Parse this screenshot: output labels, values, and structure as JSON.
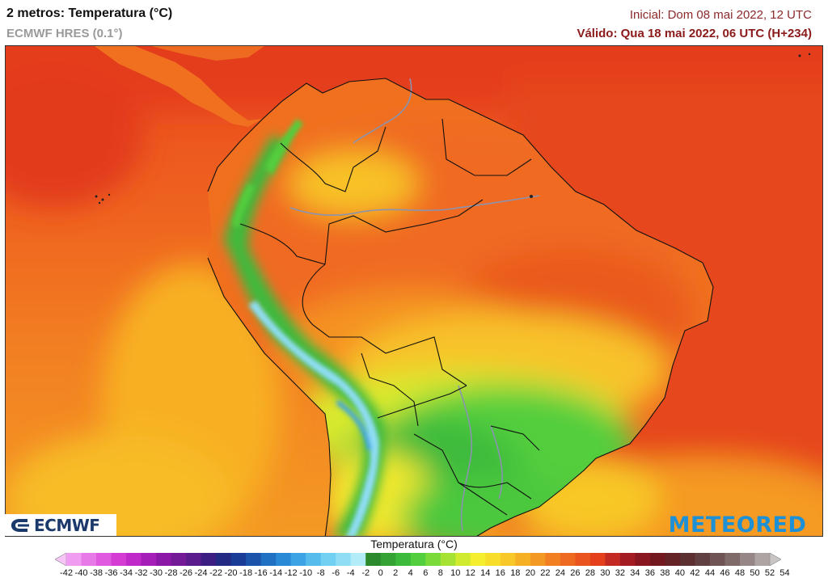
{
  "header": {
    "title": "2 metros: Temperatura (°C)",
    "model": "ECMWF HRES (0.1°)",
    "initial": "Inicial: Dom 08 mai 2022, 12 UTC",
    "valid": "Válido: Qua 18 mai 2022, 06 UTC (H+234)"
  },
  "logos": {
    "left": "ECMWF",
    "right": "METEORED"
  },
  "legend": {
    "title": "Temperatura (°C)",
    "ticks": [
      -42,
      -40,
      -38,
      -36,
      -34,
      -32,
      -30,
      -28,
      -26,
      -24,
      -22,
      -20,
      -18,
      -16,
      -14,
      -12,
      -10,
      -8,
      -6,
      -4,
      -2,
      0,
      2,
      4,
      6,
      8,
      10,
      12,
      14,
      16,
      18,
      20,
      22,
      24,
      26,
      28,
      30,
      32,
      34,
      36,
      38,
      40,
      42,
      44,
      46,
      48,
      50,
      52,
      54
    ],
    "colors": [
      "#f7c6f7",
      "#f09cf0",
      "#e87ae8",
      "#e05ae0",
      "#d43cd4",
      "#c02ac8",
      "#a61eb8",
      "#8c18a8",
      "#721a98",
      "#5a1c8c",
      "#3c1e82",
      "#222a84",
      "#1a3c96",
      "#1c54ac",
      "#2070c4",
      "#2a8ad6",
      "#3ca4e4",
      "#56bcec",
      "#72d0f2",
      "#90def6",
      "#b2ecf8",
      "#2c8a2c",
      "#34a234",
      "#3cba3c",
      "#52ce3e",
      "#7ada3a",
      "#a6e234",
      "#d0ea2e",
      "#f4ee2e",
      "#f8de2a",
      "#f8c828",
      "#f6b026",
      "#f49824",
      "#f28022",
      "#ee6a20",
      "#ea541e",
      "#e4401c",
      "#c22a22",
      "#a41c22",
      "#8a1620",
      "#741820",
      "#642226",
      "#5c3030",
      "#604040",
      "#6e5454",
      "#806a6a",
      "#968686",
      "#aea4a4",
      "#c8c4c4"
    ]
  }
}
